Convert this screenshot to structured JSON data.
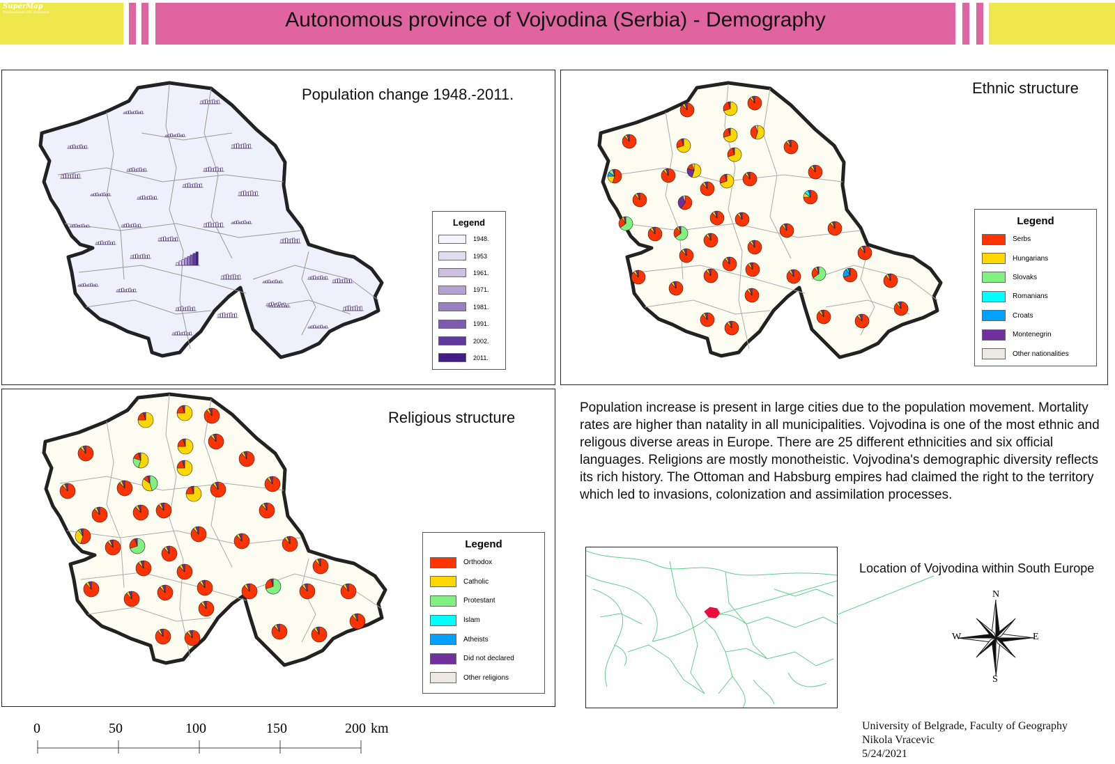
{
  "header": {
    "logo_text": "SuperMap",
    "logo_sub": "Professional GIS Software",
    "title": "Autonomous province of Vojvodina (Serbia) - Demography"
  },
  "colors": {
    "banner_yellow": "#efe84a",
    "banner_pink": "#df64a0",
    "population_fill": "#eef0fb",
    "map_fill": "#fdfcf1",
    "border": "#222222",
    "serbs": "#ff3300",
    "hungarians": "#ffd700",
    "slovaks": "#80f080",
    "romanians": "#00ffff",
    "croats": "#00a0ff",
    "montenegrin": "#7030a0",
    "other": "#ece9e0"
  },
  "population_map": {
    "title": "Population change 1948.-2011.",
    "legend_title": "Legend",
    "legend": [
      {
        "label": "1948.",
        "color": "#f6f4fb"
      },
      {
        "label": "1953",
        "color": "#e3dcef"
      },
      {
        "label": "1961.",
        "color": "#cdc1e2"
      },
      {
        "label": "1971.",
        "color": "#b4a2d4"
      },
      {
        "label": "1981.",
        "color": "#9a80c3"
      },
      {
        "label": "1991.",
        "color": "#7d5cb0"
      },
      {
        "label": "2002.",
        "color": "#5f3a9c"
      },
      {
        "label": "2011.",
        "color": "#421e85"
      }
    ]
  },
  "ethnic_map": {
    "title": "Ethnic structure",
    "legend_title": "Legend",
    "legend": [
      {
        "label": "Serbs",
        "color": "#ff3300"
      },
      {
        "label": "Hungarians",
        "color": "#ffd700"
      },
      {
        "label": "Slovaks",
        "color": "#80f080"
      },
      {
        "label": "Romanians",
        "color": "#00ffff"
      },
      {
        "label": "Croats",
        "color": "#00a0ff"
      },
      {
        "label": "Montenegrin",
        "color": "#7030a0"
      },
      {
        "label": "Other nationalities",
        "color": "#ece9e0"
      }
    ]
  },
  "religion_map": {
    "title": "Religious structure",
    "legend_title": "Legend",
    "legend": [
      {
        "label": "Orthodox",
        "color": "#ff3300"
      },
      {
        "label": "Catholic",
        "color": "#ffd700"
      },
      {
        "label": "Protestant",
        "color": "#80f080"
      },
      {
        "label": "Islam",
        "color": "#00ffff"
      },
      {
        "label": "Atheists",
        "color": "#00a0ff"
      },
      {
        "label": "Did not declared",
        "color": "#7030a0"
      },
      {
        "label": "Other religions",
        "color": "#ece9e0"
      }
    ]
  },
  "description": "Population increase is present in large cities due to the population movement. Mortality rates are higher than natality in all municipalities. Vojvodina is one of the most ethnic and religous diverse areas in Europe. There are 25 different ethnicities and six official languages. Religions are mostly monotheistic. Vojvodina's demographic diversity reflects its rich history. The Ottoman and Habsburg empires had claimed the right to the territory which led to invasions, colonization and assimilation processes.",
  "location": {
    "label": "Location of Vojvodina within South Europe"
  },
  "compass": {
    "n": "N",
    "s": "S",
    "e": "E",
    "w": "W"
  },
  "scale_bar": {
    "ticks": [
      "0",
      "50",
      "100",
      "150",
      "200"
    ],
    "unit": "km"
  },
  "credits": {
    "institution": "University  of Belgrade, Faculty of Geography",
    "author": "Nikola Vracevic",
    "date": "5/24/2021"
  }
}
